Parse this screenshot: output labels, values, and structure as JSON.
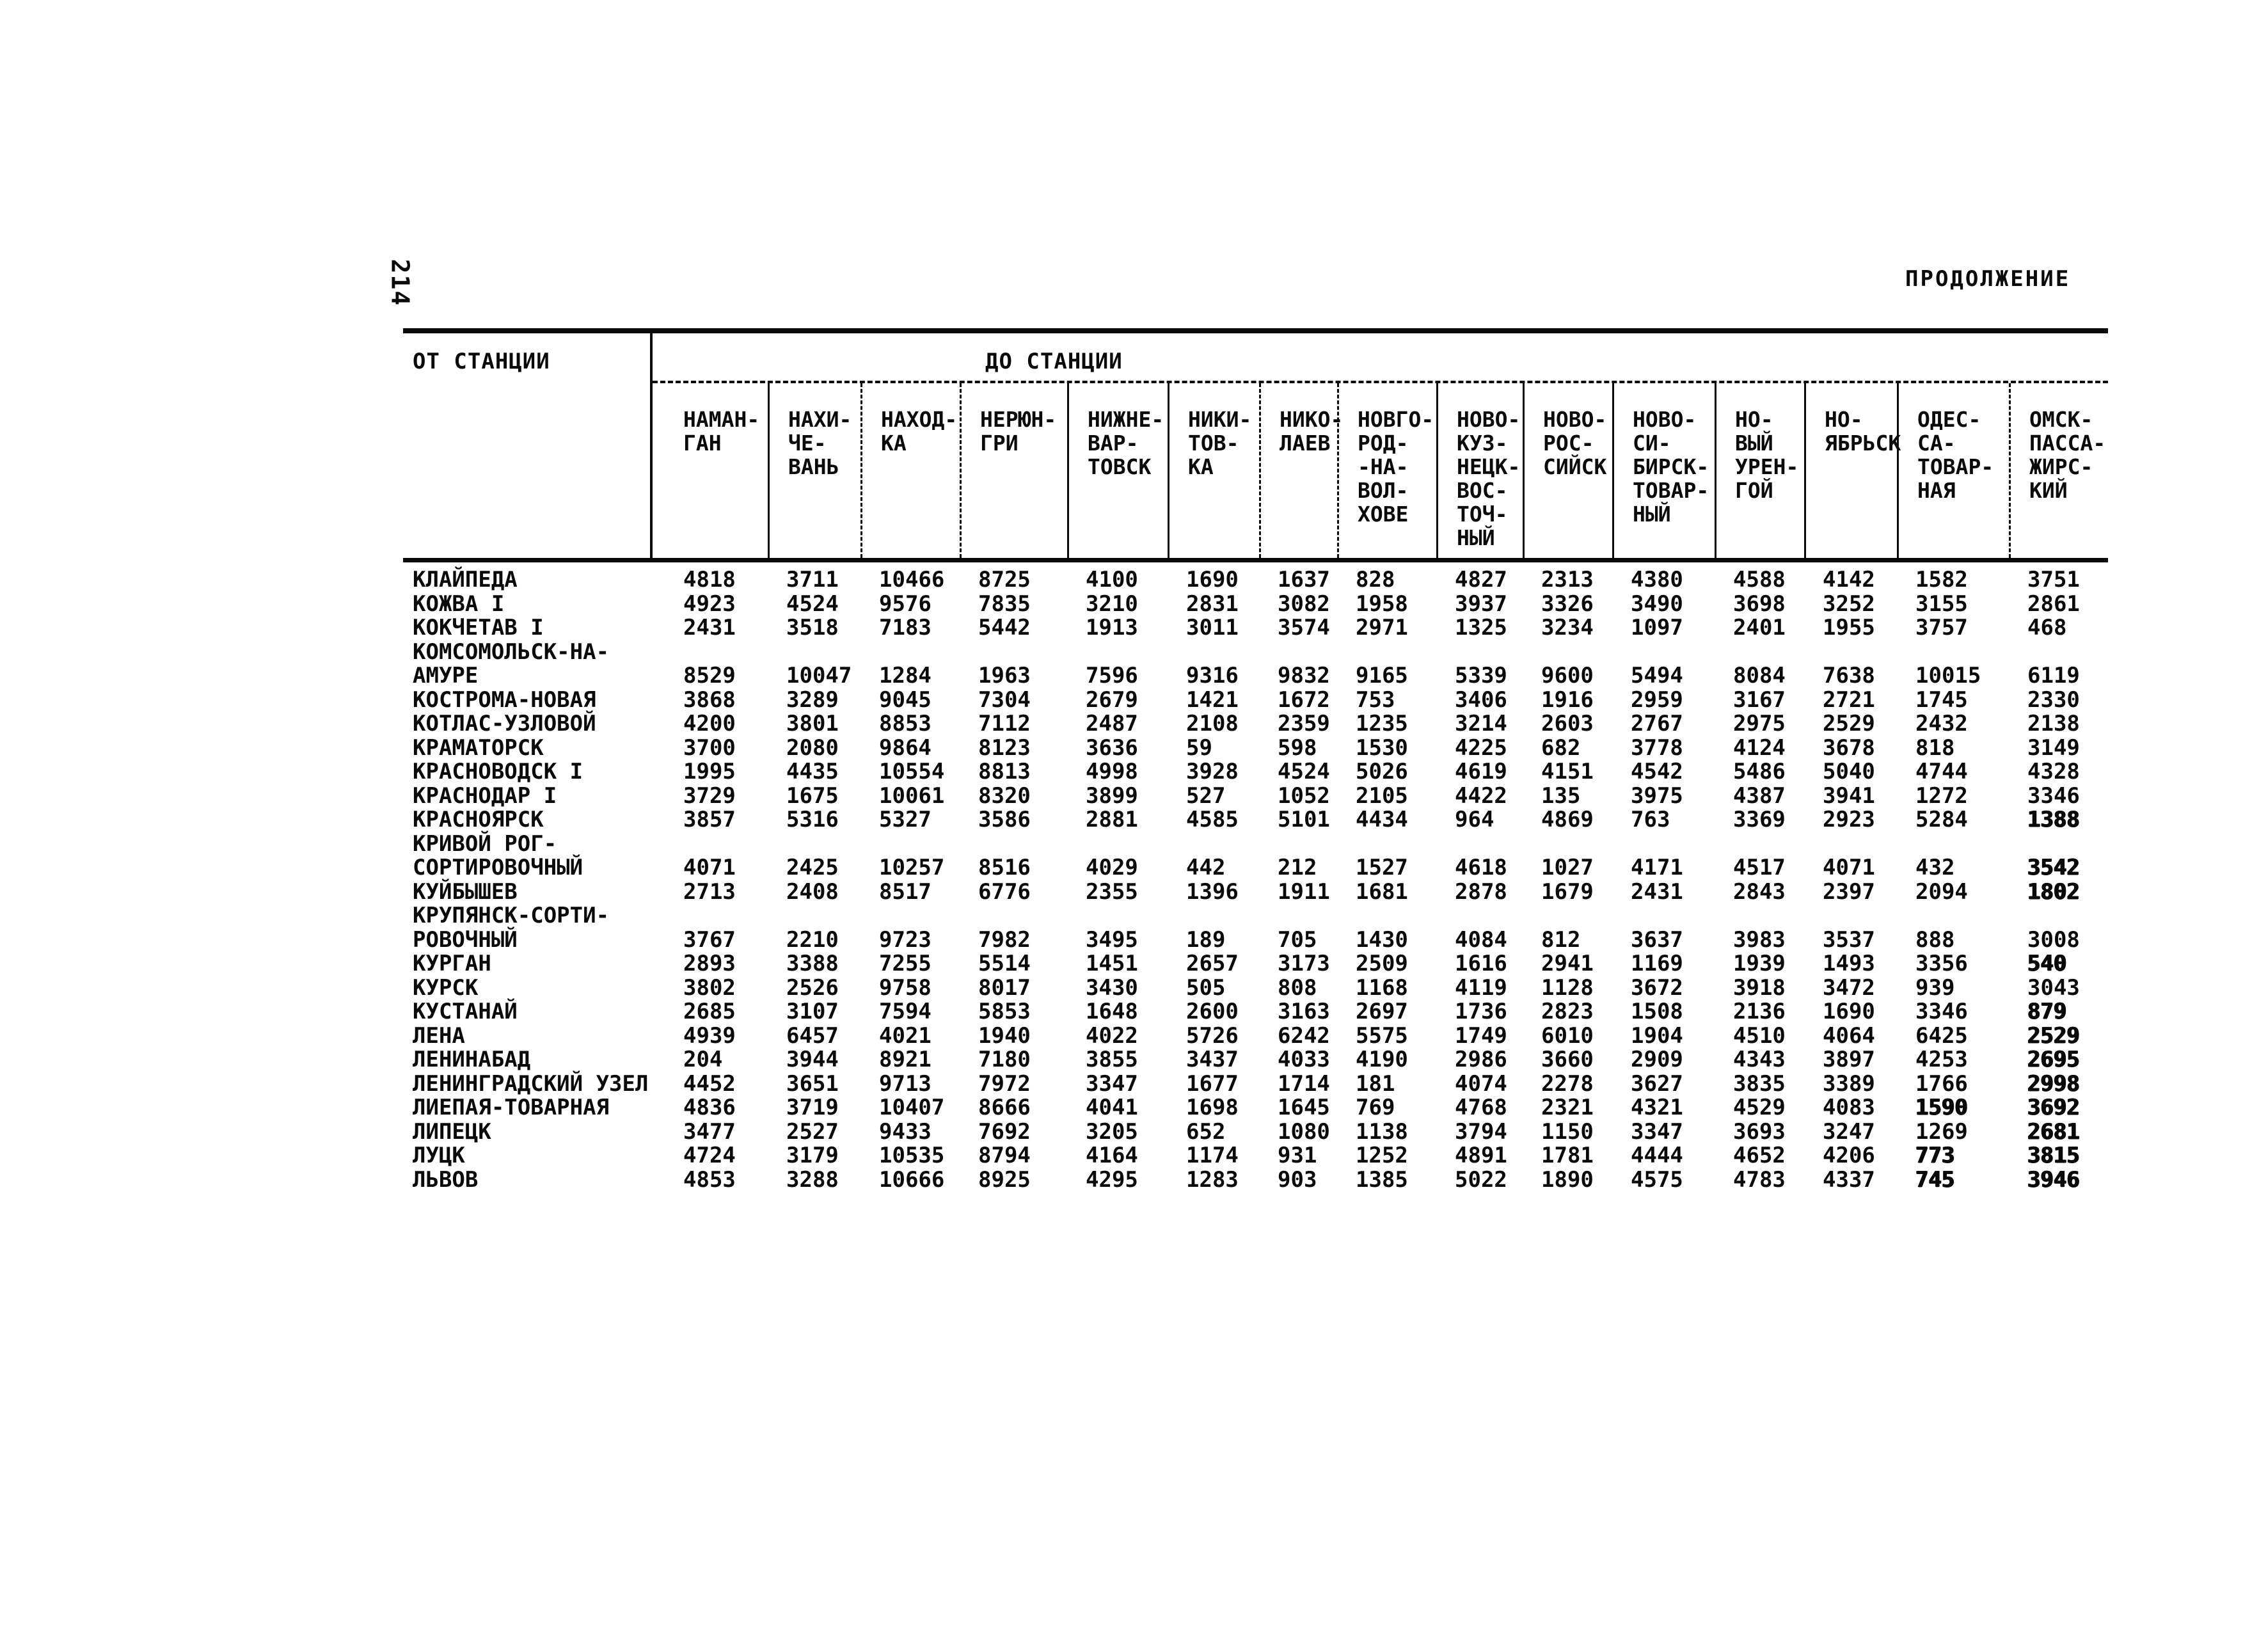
{
  "page": {
    "page_number": "214",
    "continuation_label": "ПРОДОЛЖЕНИЕ",
    "from_station_label": "ОТ СТАНЦИИ",
    "to_station_label": "ДО СТАНЦИИ"
  },
  "table": {
    "columns": [
      [
        "НАМАН-",
        "ГАН"
      ],
      [
        "НАХИ-",
        "ЧЕ-",
        "ВАНЬ"
      ],
      [
        "НАХОД-",
        "КА"
      ],
      [
        "НЕРЮН-",
        "ГРИ"
      ],
      [
        "НИЖНЕ-",
        "ВАР-",
        "ТОВСК"
      ],
      [
        "НИКИ-",
        "ТОВ-",
        "КА"
      ],
      [
        "НИКО-",
        "ЛАЕВ"
      ],
      [
        "НОВГО-",
        "РОД-",
        "-НА-",
        "ВОЛ-",
        "ХОВЕ"
      ],
      [
        "НОВО-",
        "КУЗ-",
        "НЕЦК-",
        "ВОС-",
        "ТОЧ-",
        "НЫЙ"
      ],
      [
        "НОВО-",
        "РОС-",
        "СИЙСК"
      ],
      [
        "НОВО-",
        "СИ-",
        "БИРСК-",
        "ТОВАР-",
        "НЫЙ"
      ],
      [
        "НО-",
        "ВЫЙ",
        "УРЕН-",
        "ГОЙ"
      ],
      [
        "НО-",
        "ЯБРЬСК"
      ],
      [
        "ОДЕС-",
        "СА-",
        "ТОВАР-",
        "НАЯ"
      ],
      [
        "ОМСК-",
        "ПАССА-",
        "ЖИРС-",
        "КИЙ"
      ]
    ],
    "rows": [
      {
        "label": "КЛАЙПЕДА",
        "values": [
          "4818",
          "3711",
          "10466",
          "8725",
          "4100",
          "1690",
          "1637",
          "828",
          "4827",
          "2313",
          "4380",
          "4588",
          "4142",
          "1582",
          "3751"
        ]
      },
      {
        "label": "КОЖВА I",
        "values": [
          "4923",
          "4524",
          "9576",
          "7835",
          "3210",
          "2831",
          "3082",
          "1958",
          "3937",
          "3326",
          "3490",
          "3698",
          "3252",
          "3155",
          "2861"
        ]
      },
      {
        "label": "КОКЧЕТАВ I",
        "values": [
          "2431",
          "3518",
          "7183",
          "5442",
          "1913",
          "3011",
          "3574",
          "2971",
          "1325",
          "3234",
          "1097",
          "2401",
          "1955",
          "3757",
          "468"
        ]
      },
      {
        "label": "КОМСОМОЛЬСК-НА-\nАМУРЕ",
        "values": [
          "8529",
          "10047",
          "1284",
          "1963",
          "7596",
          "9316",
          "9832",
          "9165",
          "5339",
          "9600",
          "5494",
          "8084",
          "7638",
          "10015",
          "6119"
        ]
      },
      {
        "label": "КОСТРОМА-НОВАЯ",
        "values": [
          "3868",
          "3289",
          "9045",
          "7304",
          "2679",
          "1421",
          "1672",
          "753",
          "3406",
          "1916",
          "2959",
          "3167",
          "2721",
          "1745",
          "2330"
        ]
      },
      {
        "label": "КОТЛАС-УЗЛОВОЙ",
        "values": [
          "4200",
          "3801",
          "8853",
          "7112",
          "2487",
          "2108",
          "2359",
          "1235",
          "3214",
          "2603",
          "2767",
          "2975",
          "2529",
          "2432",
          "2138"
        ]
      },
      {
        "label": "КРАМАТОРСК",
        "values": [
          "3700",
          "2080",
          "9864",
          "8123",
          "3636",
          "59",
          "598",
          "1530",
          "4225",
          "682",
          "3778",
          "4124",
          "3678",
          "818",
          "3149"
        ]
      },
      {
        "label": "КРАСНОВОДСК I",
        "values": [
          "1995",
          "4435",
          "10554",
          "8813",
          "4998",
          "3928",
          "4524",
          "5026",
          "4619",
          "4151",
          "4542",
          "5486",
          "5040",
          "4744",
          "4328"
        ]
      },
      {
        "label": "КРАСНОДАР I",
        "values": [
          "3729",
          "1675",
          "10061",
          "8320",
          "3899",
          "527",
          "1052",
          "2105",
          "4422",
          "135",
          "3975",
          "4387",
          "3941",
          "1272",
          "3346"
        ]
      },
      {
        "label": "КРАСНОЯРСК",
        "values": [
          "3857",
          "5316",
          "5327",
          "3586",
          "2881",
          "4585",
          "5101",
          "4434",
          "964",
          "4869",
          "763",
          "3369",
          "2923",
          "5284",
          "1388"
        ]
      },
      {
        "label": "КРИВОЙ РОГ-\nСОРТИРОВОЧНЫЙ",
        "values": [
          "4071",
          "2425",
          "10257",
          "8516",
          "4029",
          "442",
          "212",
          "1527",
          "4618",
          "1027",
          "4171",
          "4517",
          "4071",
          "432",
          "3542"
        ]
      },
      {
        "label": "КУЙБЫШЕВ",
        "values": [
          "2713",
          "2408",
          "8517",
          "6776",
          "2355",
          "1396",
          "1911",
          "1681",
          "2878",
          "1679",
          "2431",
          "2843",
          "2397",
          "2094",
          "1802"
        ]
      },
      {
        "label": "КРУПЯНСК-СОРТИ-\nРОВОЧНЫЙ",
        "values": [
          "3767",
          "2210",
          "9723",
          "7982",
          "3495",
          "189",
          "705",
          "1430",
          "4084",
          "812",
          "3637",
          "3983",
          "3537",
          "888",
          "3008"
        ]
      },
      {
        "label": "КУРГАН",
        "values": [
          "2893",
          "3388",
          "7255",
          "5514",
          "1451",
          "2657",
          "3173",
          "2509",
          "1616",
          "2941",
          "1169",
          "1939",
          "1493",
          "3356",
          "540"
        ]
      },
      {
        "label": "КУРСК",
        "values": [
          "3802",
          "2526",
          "9758",
          "8017",
          "3430",
          "505",
          "808",
          "1168",
          "4119",
          "1128",
          "3672",
          "3918",
          "3472",
          "939",
          "3043"
        ]
      },
      {
        "label": "КУСТАНАЙ",
        "values": [
          "2685",
          "3107",
          "7594",
          "5853",
          "1648",
          "2600",
          "3163",
          "2697",
          "1736",
          "2823",
          "1508",
          "2136",
          "1690",
          "3346",
          "879"
        ]
      },
      {
        "label": "ЛЕНА",
        "values": [
          "4939",
          "6457",
          "4021",
          "1940",
          "4022",
          "5726",
          "6242",
          "5575",
          "1749",
          "6010",
          "1904",
          "4510",
          "4064",
          "6425",
          "2529"
        ]
      },
      {
        "label": "ЛЕНИНАБАД",
        "values": [
          "204",
          "3944",
          "8921",
          "7180",
          "3855",
          "3437",
          "4033",
          "4190",
          "2986",
          "3660",
          "2909",
          "4343",
          "3897",
          "4253",
          "2695"
        ]
      },
      {
        "label": "ЛЕНИНГРАДСКИЙ УЗЕЛ",
        "values": [
          "4452",
          "3651",
          "9713",
          "7972",
          "3347",
          "1677",
          "1714",
          "181",
          "4074",
          "2278",
          "3627",
          "3835",
          "3389",
          "1766",
          "2998"
        ]
      },
      {
        "label": "ЛИЕПАЯ-ТОВАРНАЯ",
        "values": [
          "4836",
          "3719",
          "10407",
          "8666",
          "4041",
          "1698",
          "1645",
          "769",
          "4768",
          "2321",
          "4321",
          "4529",
          "4083",
          "1590",
          "3692"
        ]
      },
      {
        "label": "ЛИПЕЦК",
        "values": [
          "3477",
          "2527",
          "9433",
          "7692",
          "3205",
          "652",
          "1080",
          "1138",
          "3794",
          "1150",
          "3347",
          "3693",
          "3247",
          "1269",
          "2681"
        ]
      },
      {
        "label": "ЛУЦК",
        "values": [
          "4724",
          "3179",
          "10535",
          "8794",
          "4164",
          "1174",
          "931",
          "1252",
          "4891",
          "1781",
          "4444",
          "4652",
          "4206",
          "773",
          "3815"
        ]
      },
      {
        "label": "ЛЬВОВ",
        "values": [
          "4853",
          "3288",
          "10666",
          "8925",
          "4295",
          "1283",
          "903",
          "1385",
          "5022",
          "1890",
          "4575",
          "4783",
          "4337",
          "745",
          "3946"
        ]
      }
    ],
    "heavy_cells": [
      [
        9,
        14
      ],
      [
        10,
        14
      ],
      [
        11,
        14
      ],
      [
        13,
        14
      ],
      [
        15,
        14
      ],
      [
        16,
        14
      ],
      [
        17,
        14
      ],
      [
        18,
        14
      ],
      [
        19,
        13
      ],
      [
        19,
        14
      ],
      [
        20,
        14
      ],
      [
        21,
        13
      ],
      [
        21,
        14
      ],
      [
        22,
        13
      ],
      [
        22,
        14
      ]
    ]
  }
}
